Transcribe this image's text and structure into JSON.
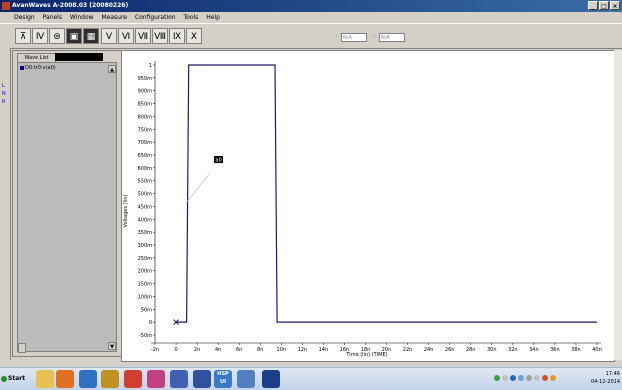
{
  "window": {
    "title": "AvanWaves A-2008.03 (20080226)",
    "controls": [
      "_",
      "□",
      "×"
    ]
  },
  "menu": [
    "Design",
    "Panels",
    "Window",
    "Measure",
    "Configuration",
    "Tools",
    "Help"
  ],
  "toolbar": {
    "buttons": [
      "⊼",
      "Ⅳ",
      "⊜",
      "▣",
      "▦",
      "Ⅴ",
      "Ⅵ",
      "Ⅶ",
      "Ⅷ",
      "Ⅸ",
      "Ⅹ"
    ],
    "field1": "N/A",
    "field2": "N/A",
    "arrow1": "‹",
    "arrow2": "‹"
  },
  "left_strip": {
    "labels": [
      "L",
      "N",
      "R"
    ]
  },
  "wave_panel": {
    "tab_label": "Wave List",
    "items": [
      "D0:tr0:v(a0)"
    ]
  },
  "plot": {
    "marker_label": "a0",
    "chart_data": {
      "type": "line",
      "xlabel": "Time (lin) (TIME)",
      "ylabel": "Voltages (lin)",
      "x_ticks": [
        "-2n",
        "0",
        "2n",
        "4n",
        "6n",
        "8n",
        "10n",
        "12n",
        "14n",
        "16n",
        "18n",
        "20n",
        "22n",
        "24n",
        "26n",
        "28n",
        "30n",
        "32n",
        "34n",
        "36n",
        "38n",
        "40n"
      ],
      "y_ticks": [
        "1",
        "950m",
        "900m",
        "850m",
        "800m",
        "750m",
        "700m",
        "650m",
        "600m",
        "550m",
        "500m",
        "450m",
        "400m",
        "350m",
        "300m",
        "250m",
        "200m",
        "150m",
        "100m",
        "50m",
        "0",
        "-50m"
      ],
      "xlim": [
        -2,
        40
      ],
      "ylim": [
        -0.05,
        1
      ],
      "series": [
        {
          "x": [
            0,
            1,
            1.2,
            9.4,
            9.6,
            40
          ],
          "y": [
            0,
            0,
            1,
            1,
            0,
            0
          ],
          "color": "#1a1a6e"
        }
      ]
    }
  },
  "taskbar": {
    "start": "Start",
    "apps": [
      {
        "name": "folder",
        "color": "#e8c050"
      },
      {
        "name": "media",
        "color": "#e07020"
      },
      {
        "name": "network",
        "color": "#3070c0"
      },
      {
        "name": "files",
        "color": "#c09020"
      },
      {
        "name": "chrome",
        "color": "#d04030"
      },
      {
        "name": "photo",
        "color": "#c04080"
      },
      {
        "name": "monitor",
        "color": "#4060b0"
      },
      {
        "name": "document",
        "color": "#3050a0"
      },
      {
        "name": "hspui",
        "color": "#3a78c8",
        "label": "HSP UI"
      },
      {
        "name": "app2",
        "color": "#5080c0"
      },
      {
        "name": "avanwaves",
        "color": "#1c3f8a"
      }
    ],
    "time": "17:46",
    "date": "04-12-2014"
  }
}
